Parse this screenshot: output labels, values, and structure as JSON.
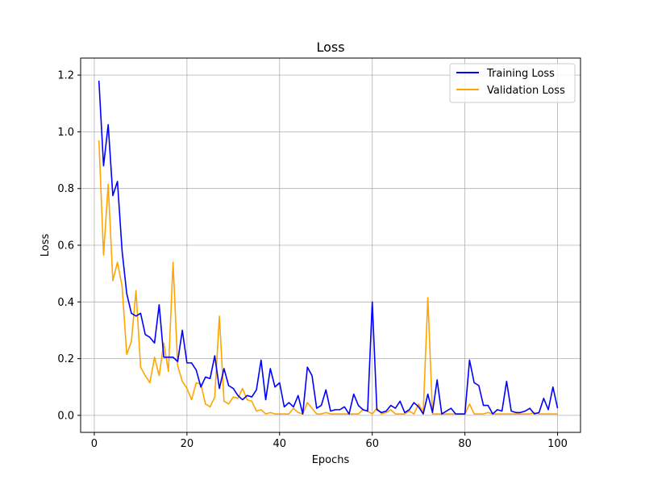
{
  "chart_data": {
    "type": "line",
    "title": "Loss",
    "xlabel": "Epochs",
    "ylabel": "Loss",
    "xlim": [
      -2.95,
      104.95
    ],
    "ylim": [
      -0.06,
      1.26
    ],
    "xticks": [
      0,
      20,
      40,
      60,
      80,
      100
    ],
    "yticks": [
      0.0,
      0.2,
      0.4,
      0.6,
      0.8,
      1.0,
      1.2
    ],
    "xtick_labels": [
      "0",
      "20",
      "40",
      "60",
      "80",
      "100"
    ],
    "ytick_labels": [
      "0.0",
      "0.2",
      "0.4",
      "0.6",
      "0.8",
      "1.0",
      "1.2"
    ],
    "grid": true,
    "legend_position": "top-right",
    "x": [
      1,
      2,
      3,
      4,
      5,
      6,
      7,
      8,
      9,
      10,
      11,
      12,
      13,
      14,
      15,
      16,
      17,
      18,
      19,
      20,
      21,
      22,
      23,
      24,
      25,
      26,
      27,
      28,
      29,
      30,
      31,
      32,
      33,
      34,
      35,
      36,
      37,
      38,
      39,
      40,
      41,
      42,
      43,
      44,
      45,
      46,
      47,
      48,
      49,
      50,
      51,
      52,
      53,
      54,
      55,
      56,
      57,
      58,
      59,
      60,
      61,
      62,
      63,
      64,
      65,
      66,
      67,
      68,
      69,
      70,
      71,
      72,
      73,
      74,
      75,
      76,
      77,
      78,
      79,
      80,
      81,
      82,
      83,
      84,
      85,
      86,
      87,
      88,
      89,
      90,
      91,
      92,
      93,
      94,
      95,
      96,
      97,
      98,
      99,
      100
    ],
    "series": [
      {
        "name": "Training Loss",
        "color": "#0000ff",
        "values": [
          1.18,
          0.88,
          1.025,
          0.775,
          0.825,
          0.58,
          0.43,
          0.36,
          0.35,
          0.36,
          0.285,
          0.275,
          0.255,
          0.39,
          0.205,
          0.205,
          0.205,
          0.19,
          0.3,
          0.185,
          0.185,
          0.16,
          0.1,
          0.135,
          0.13,
          0.21,
          0.095,
          0.165,
          0.105,
          0.095,
          0.07,
          0.055,
          0.07,
          0.065,
          0.09,
          0.195,
          0.055,
          0.165,
          0.1,
          0.115,
          0.03,
          0.045,
          0.03,
          0.07,
          0.005,
          0.17,
          0.14,
          0.025,
          0.035,
          0.09,
          0.015,
          0.02,
          0.02,
          0.03,
          0.005,
          0.075,
          0.035,
          0.02,
          0.015,
          0.4,
          0.02,
          0.01,
          0.015,
          0.035,
          0.025,
          0.05,
          0.01,
          0.02,
          0.045,
          0.03,
          0.005,
          0.075,
          0.01,
          0.125,
          0.005,
          0.015,
          0.025,
          0.005,
          0.005,
          0.005,
          0.195,
          0.115,
          0.105,
          0.035,
          0.035,
          0.005,
          0.02,
          0.015,
          0.12,
          0.015,
          0.01,
          0.01,
          0.015,
          0.025,
          0.005,
          0.01,
          0.06,
          0.02,
          0.1,
          0.025
        ]
      },
      {
        "name": "Validation Loss",
        "color": "#ffa500",
        "values": [
          0.97,
          0.565,
          0.815,
          0.475,
          0.54,
          0.455,
          0.215,
          0.26,
          0.44,
          0.17,
          0.14,
          0.115,
          0.205,
          0.14,
          0.255,
          0.155,
          0.54,
          0.175,
          0.12,
          0.095,
          0.055,
          0.115,
          0.11,
          0.04,
          0.03,
          0.065,
          0.35,
          0.05,
          0.04,
          0.065,
          0.06,
          0.095,
          0.055,
          0.05,
          0.015,
          0.02,
          0.005,
          0.01,
          0.005,
          0.005,
          0.005,
          0.005,
          0.025,
          0.01,
          0.005,
          0.045,
          0.025,
          0.005,
          0.005,
          0.01,
          0.005,
          0.005,
          0.005,
          0.005,
          0.005,
          0.005,
          0.005,
          0.02,
          0.015,
          0.005,
          0.025,
          0.005,
          0.01,
          0.02,
          0.005,
          0.005,
          0.005,
          0.015,
          0.005,
          0.04,
          0.01,
          0.415,
          0.005,
          0.005,
          0.005,
          0.005,
          0.005,
          0.005,
          0.005,
          0.005,
          0.04,
          0.005,
          0.005,
          0.005,
          0.01,
          0.005,
          0.005,
          0.005,
          0.005,
          0.005,
          0.005,
          0.005,
          0.005,
          0.005,
          0.01,
          0.005,
          0.005,
          0.005,
          0.005,
          0.005
        ]
      }
    ]
  }
}
